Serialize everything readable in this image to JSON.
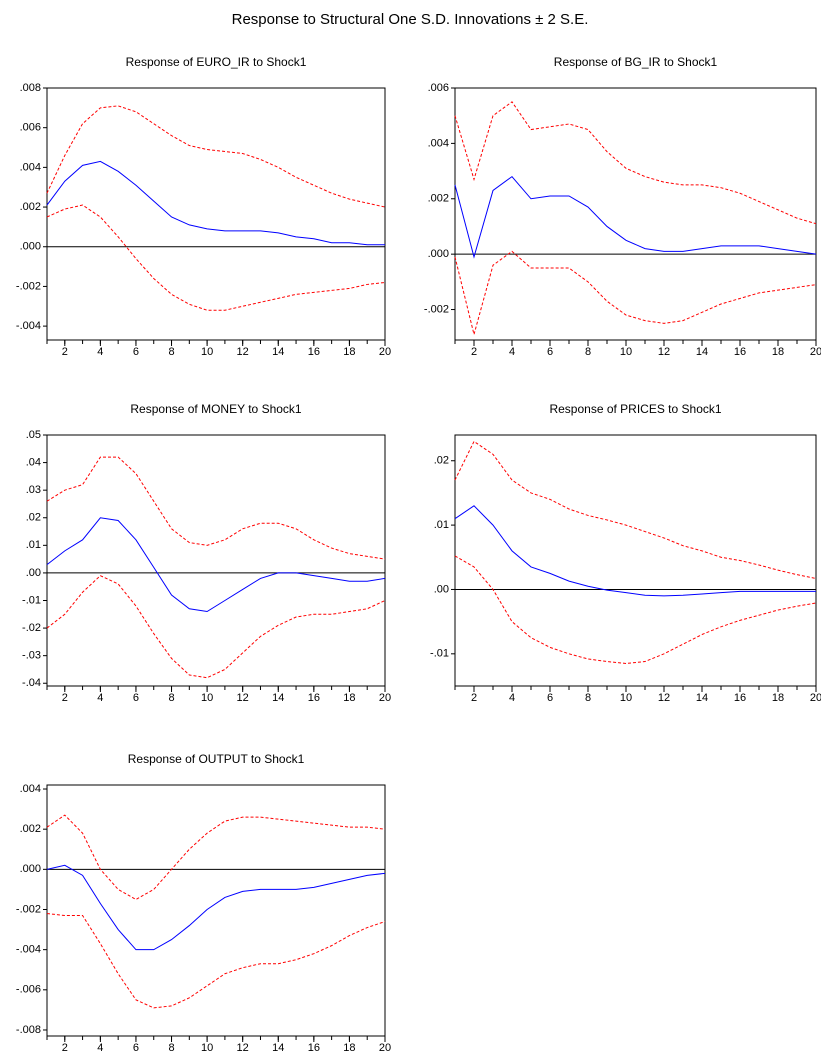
{
  "title": "Response to Structural One S.D. Innovations ± 2 S.E.",
  "chart_data": [
    {
      "type": "line",
      "title": "Response of EURO_IR to Shock1",
      "x": [
        1,
        2,
        3,
        4,
        5,
        6,
        7,
        8,
        9,
        10,
        11,
        12,
        13,
        14,
        15,
        16,
        17,
        18,
        19,
        20
      ],
      "xlim": [
        1,
        20
      ],
      "xticks": [
        2,
        4,
        6,
        8,
        10,
        12,
        14,
        16,
        18,
        20
      ],
      "ylim": [
        -0.0047,
        0.008
      ],
      "yticks": [
        {
          "value": -0.004,
          "label": "-.004"
        },
        {
          "value": -0.002,
          "label": "-.002"
        },
        {
          "value": 0,
          "label": ".000"
        },
        {
          "value": 0.002,
          "label": ".002"
        },
        {
          "value": 0.004,
          "label": ".004"
        },
        {
          "value": 0.006,
          "label": ".006"
        },
        {
          "value": 0.008,
          "label": ".008"
        }
      ],
      "reference_line": 0,
      "series": [
        {
          "color": "#0000ff",
          "line_style": "solid",
          "values": [
            0.0021,
            0.0033,
            0.0041,
            0.0043,
            0.0038,
            0.0031,
            0.0023,
            0.0015,
            0.0011,
            0.0009,
            0.0008,
            0.0008,
            0.0008,
            0.0007,
            0.0005,
            0.0004,
            0.0002,
            0.0002,
            0.0001,
            0.0001
          ]
        },
        {
          "color": "#ff0000",
          "line_style": "dashed",
          "values": [
            0.0027,
            0.0046,
            0.0062,
            0.007,
            0.0071,
            0.0068,
            0.0062,
            0.0056,
            0.0051,
            0.0049,
            0.0048,
            0.0047,
            0.0044,
            0.004,
            0.0035,
            0.0031,
            0.0027,
            0.0024,
            0.0022,
            0.002
          ]
        },
        {
          "color": "#ff0000",
          "line_style": "dashed",
          "values": [
            0.0015,
            0.0019,
            0.0021,
            0.0015,
            0.0005,
            -0.0006,
            -0.0016,
            -0.0024,
            -0.0029,
            -0.0032,
            -0.0032,
            -0.003,
            -0.0028,
            -0.0026,
            -0.0024,
            -0.0023,
            -0.0022,
            -0.0021,
            -0.0019,
            -0.0018
          ]
        }
      ]
    },
    {
      "type": "line",
      "title": "Response of BG_IR to Shock1",
      "x": [
        1,
        2,
        3,
        4,
        5,
        6,
        7,
        8,
        9,
        10,
        11,
        12,
        13,
        14,
        15,
        16,
        17,
        18,
        19,
        20
      ],
      "xlim": [
        1,
        20
      ],
      "xticks": [
        2,
        4,
        6,
        8,
        10,
        12,
        14,
        16,
        18,
        20
      ],
      "ylim": [
        -0.0031,
        0.006
      ],
      "yticks": [
        {
          "value": -0.002,
          "label": "-.002"
        },
        {
          "value": 0,
          "label": ".000"
        },
        {
          "value": 0.002,
          "label": ".002"
        },
        {
          "value": 0.004,
          "label": ".004"
        },
        {
          "value": 0.006,
          "label": ".006"
        }
      ],
      "reference_line": 0,
      "series": [
        {
          "color": "#0000ff",
          "line_style": "solid",
          "values": [
            0.0025,
            -0.0001,
            0.0023,
            0.0028,
            0.002,
            0.0021,
            0.0021,
            0.0017,
            0.001,
            0.0005,
            0.0002,
            0.0001,
            0.0001,
            0.0002,
            0.0003,
            0.0003,
            0.0003,
            0.0002,
            0.0001,
            0.0
          ]
        },
        {
          "color": "#ff0000",
          "line_style": "dashed",
          "values": [
            0.005,
            0.0027,
            0.005,
            0.0055,
            0.0045,
            0.0046,
            0.0047,
            0.0045,
            0.0037,
            0.0031,
            0.0028,
            0.0026,
            0.0025,
            0.0025,
            0.0024,
            0.0022,
            0.0019,
            0.0016,
            0.0013,
            0.0011
          ]
        },
        {
          "color": "#ff0000",
          "line_style": "dashed",
          "values": [
            -0.0001,
            -0.0029,
            -0.0004,
            0.0001,
            -0.0005,
            -0.0005,
            -0.0005,
            -0.001,
            -0.0017,
            -0.0022,
            -0.0024,
            -0.0025,
            -0.0024,
            -0.0021,
            -0.0018,
            -0.0016,
            -0.0014,
            -0.0013,
            -0.0012,
            -0.0011
          ]
        }
      ]
    },
    {
      "type": "line",
      "title": "Response of MONEY to Shock1",
      "x": [
        1,
        2,
        3,
        4,
        5,
        6,
        7,
        8,
        9,
        10,
        11,
        12,
        13,
        14,
        15,
        16,
        17,
        18,
        19,
        20
      ],
      "xlim": [
        1,
        20
      ],
      "xticks": [
        2,
        4,
        6,
        8,
        10,
        12,
        14,
        16,
        18,
        20
      ],
      "ylim": [
        -0.041,
        0.05
      ],
      "yticks": [
        {
          "value": -0.04,
          "label": "-.04"
        },
        {
          "value": -0.03,
          "label": "-.03"
        },
        {
          "value": -0.02,
          "label": "-.02"
        },
        {
          "value": -0.01,
          "label": "-.01"
        },
        {
          "value": 0,
          "label": ".00"
        },
        {
          "value": 0.01,
          "label": ".01"
        },
        {
          "value": 0.02,
          "label": ".02"
        },
        {
          "value": 0.03,
          "label": ".03"
        },
        {
          "value": 0.04,
          "label": ".04"
        },
        {
          "value": 0.05,
          "label": ".05"
        }
      ],
      "reference_line": 0,
      "series": [
        {
          "color": "#0000ff",
          "line_style": "solid",
          "values": [
            0.003,
            0.008,
            0.012,
            0.02,
            0.019,
            0.012,
            0.002,
            -0.008,
            -0.013,
            -0.014,
            -0.01,
            -0.006,
            -0.002,
            0.0,
            0.0,
            -0.001,
            -0.002,
            -0.003,
            -0.003,
            -0.002
          ]
        },
        {
          "color": "#ff0000",
          "line_style": "dashed",
          "values": [
            0.026,
            0.03,
            0.032,
            0.042,
            0.042,
            0.036,
            0.026,
            0.016,
            0.011,
            0.01,
            0.012,
            0.016,
            0.018,
            0.018,
            0.016,
            0.012,
            0.009,
            0.007,
            0.006,
            0.005
          ]
        },
        {
          "color": "#ff0000",
          "line_style": "dashed",
          "values": [
            -0.02,
            -0.015,
            -0.007,
            -0.001,
            -0.004,
            -0.012,
            -0.022,
            -0.031,
            -0.037,
            -0.038,
            -0.035,
            -0.029,
            -0.023,
            -0.019,
            -0.016,
            -0.015,
            -0.015,
            -0.014,
            -0.013,
            -0.01
          ]
        }
      ]
    },
    {
      "type": "line",
      "title": "Response of PRICES to Shock1",
      "x": [
        1,
        2,
        3,
        4,
        5,
        6,
        7,
        8,
        9,
        10,
        11,
        12,
        13,
        14,
        15,
        16,
        17,
        18,
        19,
        20
      ],
      "xlim": [
        1,
        20
      ],
      "xticks": [
        2,
        4,
        6,
        8,
        10,
        12,
        14,
        16,
        18,
        20
      ],
      "ylim": [
        -0.015,
        0.024
      ],
      "yticks": [
        {
          "value": -0.01,
          "label": "-.01"
        },
        {
          "value": 0,
          "label": ".00"
        },
        {
          "value": 0.01,
          "label": ".01"
        },
        {
          "value": 0.02,
          "label": ".02"
        }
      ],
      "reference_line": 0,
      "series": [
        {
          "color": "#0000ff",
          "line_style": "solid",
          "values": [
            0.011,
            0.013,
            0.01,
            0.006,
            0.0035,
            0.0025,
            0.0013,
            0.0005,
            -0.0001,
            -0.0005,
            -0.0009,
            -0.001,
            -0.0009,
            -0.0007,
            -0.0005,
            -0.0003,
            -0.0003,
            -0.0003,
            -0.0003,
            -0.0003
          ]
        },
        {
          "color": "#ff0000",
          "line_style": "dashed",
          "values": [
            0.017,
            0.023,
            0.021,
            0.017,
            0.015,
            0.014,
            0.0125,
            0.0115,
            0.0108,
            0.01,
            0.009,
            0.008,
            0.0068,
            0.006,
            0.005,
            0.0045,
            0.0038,
            0.003,
            0.0023,
            0.0017
          ]
        },
        {
          "color": "#ff0000",
          "line_style": "dashed",
          "values": [
            0.0052,
            0.0035,
            0.0,
            -0.005,
            -0.0075,
            -0.009,
            -0.01,
            -0.0108,
            -0.0112,
            -0.0115,
            -0.0112,
            -0.01,
            -0.0085,
            -0.007,
            -0.0058,
            -0.0048,
            -0.004,
            -0.0032,
            -0.0026,
            -0.0021
          ]
        }
      ]
    },
    {
      "type": "line",
      "title": "Response of OUTPUT to Shock1",
      "x": [
        1,
        2,
        3,
        4,
        5,
        6,
        7,
        8,
        9,
        10,
        11,
        12,
        13,
        14,
        15,
        16,
        17,
        18,
        19,
        20
      ],
      "xlim": [
        1,
        20
      ],
      "xticks": [
        2,
        4,
        6,
        8,
        10,
        12,
        14,
        16,
        18,
        20
      ],
      "ylim": [
        -0.0083,
        0.0042
      ],
      "yticks": [
        {
          "value": -0.008,
          "label": "-.008"
        },
        {
          "value": -0.006,
          "label": "-.006"
        },
        {
          "value": -0.004,
          "label": "-.004"
        },
        {
          "value": -0.002,
          "label": "-.002"
        },
        {
          "value": 0,
          "label": ".000"
        },
        {
          "value": 0.002,
          "label": ".002"
        },
        {
          "value": 0.004,
          "label": ".004"
        }
      ],
      "reference_line": 0,
      "series": [
        {
          "color": "#0000ff",
          "line_style": "solid",
          "values": [
            0.0,
            0.0002,
            -0.0003,
            -0.0017,
            -0.003,
            -0.004,
            -0.004,
            -0.0035,
            -0.0028,
            -0.002,
            -0.0014,
            -0.0011,
            -0.001,
            -0.001,
            -0.001,
            -0.0009,
            -0.0007,
            -0.0005,
            -0.0003,
            -0.0002
          ]
        },
        {
          "color": "#ff0000",
          "line_style": "dashed",
          "values": [
            0.0021,
            0.0027,
            0.0018,
            0.0,
            -0.001,
            -0.0015,
            -0.001,
            0.0,
            0.001,
            0.0018,
            0.0024,
            0.0026,
            0.0026,
            0.0025,
            0.0024,
            0.0023,
            0.0022,
            0.0021,
            0.0021,
            0.002
          ]
        },
        {
          "color": "#ff0000",
          "line_style": "dashed",
          "values": [
            -0.0022,
            -0.0023,
            -0.0023,
            -0.0037,
            -0.0052,
            -0.0065,
            -0.0069,
            -0.0068,
            -0.0064,
            -0.0058,
            -0.0052,
            -0.0049,
            -0.0047,
            -0.0047,
            -0.0045,
            -0.0042,
            -0.0038,
            -0.0033,
            -0.0029,
            -0.0026
          ]
        }
      ]
    }
  ]
}
